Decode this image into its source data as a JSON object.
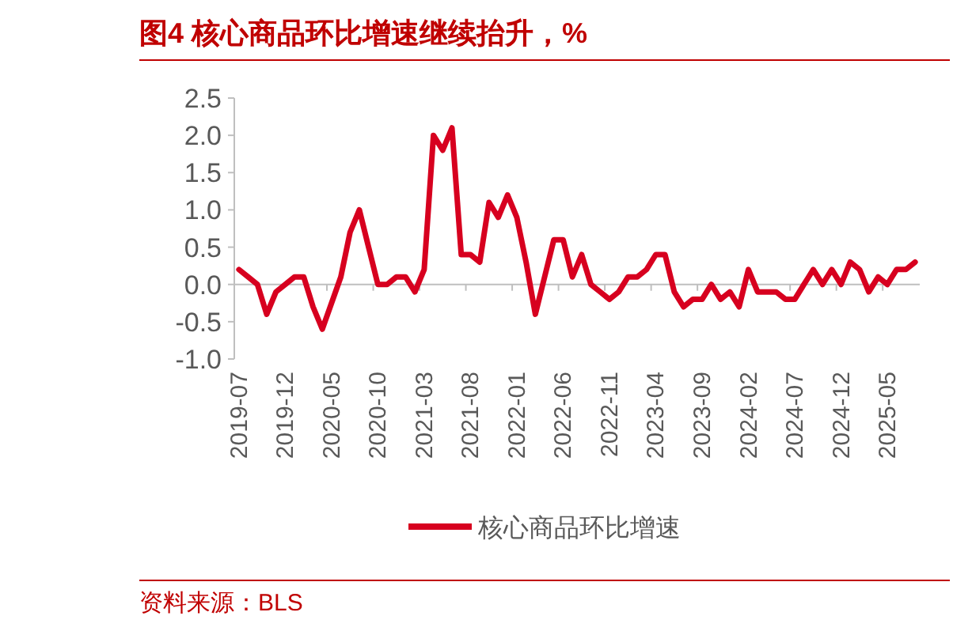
{
  "chart_data": {
    "type": "line",
    "title": "图4  核心商品环比增速继续抬升，%",
    "categories": [
      "2019-07",
      null,
      null,
      null,
      null,
      "2019-12",
      null,
      null,
      null,
      null,
      "2020-05",
      null,
      null,
      null,
      null,
      "2020-10",
      null,
      null,
      null,
      null,
      "2021-03",
      null,
      null,
      null,
      null,
      "2021-08",
      null,
      null,
      null,
      null,
      "2022-01",
      null,
      null,
      null,
      null,
      "2022-06",
      null,
      null,
      null,
      null,
      "2022-11",
      null,
      null,
      null,
      null,
      "2023-04",
      null,
      null,
      null,
      null,
      "2023-09",
      null,
      null,
      null,
      null,
      "2024-02",
      null,
      null,
      null,
      null,
      "2024-07",
      null,
      null,
      null,
      null,
      "2024-12",
      null,
      null,
      null,
      null,
      "2025-05",
      null,
      null,
      null
    ],
    "series": [
      {
        "name": "核心商品环比增速",
        "color": "#d7001f",
        "values": [
          0.2,
          0.1,
          0.0,
          -0.4,
          -0.1,
          0.0,
          0.1,
          0.1,
          -0.3,
          -0.6,
          -0.25,
          0.1,
          0.7,
          1.0,
          0.5,
          0.0,
          0.0,
          0.1,
          0.1,
          -0.1,
          0.2,
          2.0,
          1.8,
          2.1,
          0.4,
          0.4,
          0.3,
          1.1,
          0.9,
          1.2,
          0.9,
          0.3,
          -0.4,
          0.1,
          0.6,
          0.6,
          0.1,
          0.4,
          0.0,
          -0.1,
          -0.2,
          -0.1,
          0.1,
          0.1,
          0.2,
          0.4,
          0.4,
          -0.1,
          -0.3,
          -0.2,
          -0.2,
          0.0,
          -0.2,
          -0.1,
          -0.3,
          0.2,
          -0.1,
          -0.1,
          -0.1,
          -0.2,
          -0.2,
          0.0,
          0.2,
          0.0,
          0.2,
          0.0,
          0.3,
          0.2,
          -0.1,
          0.1,
          0.0,
          0.2,
          0.2,
          0.3
        ]
      }
    ],
    "ylim": [
      -1.0,
      2.5
    ],
    "yticks": [
      {
        "value": -1.0,
        "label": "-1.0"
      },
      {
        "value": -0.5,
        "label": "-0.5"
      },
      {
        "value": 0,
        "label": "0.0"
      },
      {
        "value": 0.5,
        "label": "0.5"
      },
      {
        "value": 1.0,
        "label": "1.0"
      },
      {
        "value": 1.5,
        "label": "1.5"
      },
      {
        "value": 2.0,
        "label": "2.0"
      },
      {
        "value": 2.5,
        "label": "2.5"
      }
    ],
    "legend": "bottom",
    "marker": "none",
    "line_style": "solid",
    "annotations": [
      "资料来源：BLS"
    ]
  }
}
